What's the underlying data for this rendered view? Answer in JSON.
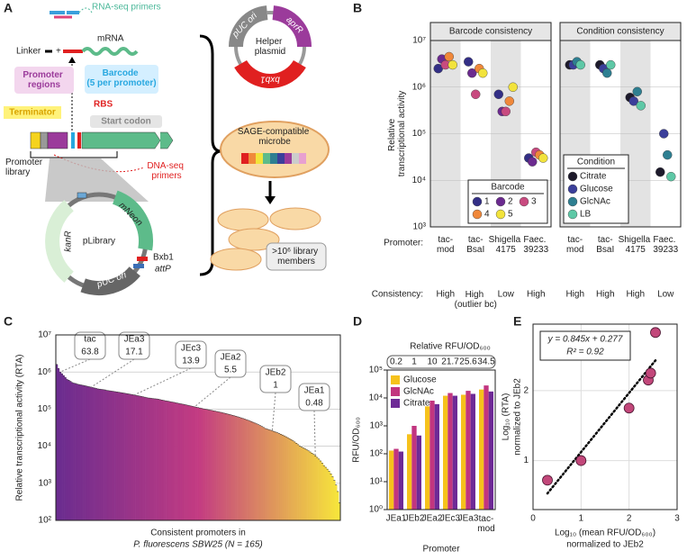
{
  "panel_labels": [
    "A",
    "B",
    "C",
    "D",
    "E"
  ],
  "diagram": {
    "rna_seq_primers": "RNA-seq primers",
    "linker": "Linker",
    "mrna": "mRNA",
    "promoter_regions": "Promoter regions",
    "barcode": "Barcode (5 per promoter)",
    "rbs": "RBS",
    "terminator": "Terminator",
    "start_codon": "Start codon",
    "promoter_library": "Promoter library",
    "dna_seq_primers": "DNA-seq primers",
    "mneon": "mNeon",
    "kanr": "kanR",
    "plibrary": "pLibrary",
    "bxb1": "Bxb1",
    "attp": "attP",
    "library_puc_ori": "pUC ori",
    "helper_puc_ori": "pUC ori",
    "aprr": "aprR",
    "helper_plasmid": "Helper plasmid",
    "helper_bxb1": "bxb1",
    "microbe": "SAGE-compatible microbe",
    "library_members": ">10⁶ library members"
  },
  "chart_data": [
    {
      "type": "strip",
      "title": "Barcode consistency",
      "ylabel": "Relative transcriptional activity",
      "row_labels": [
        "Promoter:",
        "Consistency:"
      ],
      "categories": [
        "tac-mod",
        "tac-BsaI",
        "Shigella 4175",
        "Faec. 39233"
      ],
      "consistency": [
        "High",
        "High (outlier bc)",
        "Low",
        "High"
      ],
      "log_y": true,
      "ylim": [
        1000,
        10000000
      ],
      "yticks": [
        {
          "value": 1000,
          "label": "10³"
        },
        {
          "value": 10000,
          "label": "10⁴"
        },
        {
          "value": 100000,
          "label": "10⁵"
        },
        {
          "value": 1000000,
          "label": "10⁶"
        },
        {
          "value": 10000000,
          "label": "10⁷"
        }
      ],
      "grid": true,
      "legend": "lower right",
      "legend_title": "Barcode",
      "legend_columns": 3,
      "series": [
        {
          "name": "1",
          "color": "#332f86",
          "values": [
            2500000,
            3500000,
            700000,
            30000
          ]
        },
        {
          "name": "2",
          "color": "#6b2a8f",
          "values": [
            4000000,
            2000000,
            300000,
            25000
          ]
        },
        {
          "name": "3",
          "color": "#c84a7f",
          "values": [
            3000000,
            700000,
            300000,
            40000
          ]
        },
        {
          "name": "4",
          "color": "#f0883a",
          "values": [
            4500000,
            2500000,
            500000,
            35000
          ]
        },
        {
          "name": "5",
          "color": "#f2e33c",
          "values": [
            3000000,
            2000000,
            1000000,
            30000
          ]
        }
      ]
    },
    {
      "type": "strip",
      "title": "Condition consistency",
      "categories": [
        "tac-mod",
        "tac-BsaI",
        "Shigella 4175",
        "Faec. 39233"
      ],
      "consistency": [
        "High",
        "High",
        "High",
        "Low"
      ],
      "log_y": true,
      "ylim": [
        1000,
        10000000
      ],
      "yticks": [
        1000,
        10000,
        100000,
        1000000,
        10000000
      ],
      "grid": true,
      "legend": "lower left",
      "legend_title": "Condition",
      "legend_columns": 1,
      "series": [
        {
          "name": "Citrate",
          "color": "#1d1a2b",
          "values": [
            3000000,
            3000000,
            600000,
            15000
          ]
        },
        {
          "name": "Glucose",
          "color": "#3b3f9a",
          "values": [
            3000000,
            2500000,
            500000,
            100000
          ]
        },
        {
          "name": "GlcNAc",
          "color": "#2e7f91",
          "values": [
            3500000,
            2000000,
            800000,
            35000
          ]
        },
        {
          "name": "LB",
          "color": "#5ec8a6",
          "values": [
            3000000,
            3000000,
            400000,
            12000
          ]
        }
      ]
    },
    {
      "type": "gradient_bar",
      "ylabel": "Relative transcriptional activity (RTA)",
      "xlabel_lines": [
        "Consistent promoters in",
        "P. fluorescens SBW25 (N = 165)"
      ],
      "log_y": true,
      "ylim": [
        100,
        10000000
      ],
      "yticks": [
        {
          "value": 100,
          "label": "10²"
        },
        {
          "value": 1000,
          "label": "10³"
        },
        {
          "value": 10000,
          "label": "10⁴"
        },
        {
          "value": 100000,
          "label": "10⁵"
        },
        {
          "value": 1000000,
          "label": "10⁶"
        },
        {
          "value": 10000000,
          "label": "10⁷"
        }
      ],
      "grid": true,
      "colors": [
        "#6a2c8f",
        "#c33b82",
        "#f7e63a"
      ],
      "values": [
        1600000,
        1250000,
        1000000,
        900000,
        800000,
        710000,
        630000,
        600000,
        560000,
        520000,
        500000,
        490000,
        470000,
        460000,
        450000,
        440000,
        430000,
        420000,
        410000,
        400000,
        390000,
        380000,
        370000,
        360000,
        350000,
        345000,
        340000,
        335000,
        330000,
        320000,
        315000,
        310000,
        305000,
        300000,
        295000,
        290000,
        285000,
        280000,
        275000,
        270000,
        265000,
        260000,
        255000,
        250000,
        245000,
        240000,
        235000,
        230000,
        225000,
        220000,
        215000,
        210000,
        205000,
        200000,
        198000,
        195000,
        192000,
        190000,
        188000,
        185000,
        180000,
        176000,
        172000,
        168000,
        165000,
        162000,
        158000,
        155000,
        152000,
        148000,
        145000,
        142000,
        139000,
        136000,
        133000,
        130000,
        127000,
        124000,
        121000,
        118000,
        115000,
        112000,
        110000,
        107000,
        105000,
        102000,
        100000,
        98000,
        96000,
        94000,
        92000,
        90000,
        88000,
        86000,
        84000,
        82000,
        80000,
        78000,
        76000,
        74000,
        72000,
        70000,
        68000,
        66000,
        64000,
        62000,
        60000,
        58000,
        56000,
        54000,
        52000,
        50000,
        48000,
        46000,
        44000,
        42000,
        40000,
        38000,
        36000,
        34000,
        32000,
        30000,
        29000,
        28000,
        27000,
        26000,
        25000,
        24000,
        23000,
        22000,
        21000,
        20000,
        19000,
        18000,
        17000,
        16000,
        15000,
        14000,
        13000,
        12000,
        11000,
        10000,
        9500,
        9000,
        8500,
        8000,
        7500,
        7000,
        6500,
        6000,
        5500,
        5000,
        4500,
        4000,
        3500,
        3000,
        2700,
        2400,
        2100,
        1800,
        1500,
        1200,
        900,
        600,
        300
      ],
      "annotations": [
        {
          "label": "tac",
          "value": 63.8
        },
        {
          "label": "JEa3",
          "value": 17.1
        },
        {
          "label": "JEc3",
          "value": 13.9
        },
        {
          "label": "JEa2",
          "value": 5.5
        },
        {
          "label": "JEb2",
          "value": 1
        },
        {
          "label": "JEa1",
          "value": 0.48
        }
      ]
    },
    {
      "type": "grouped_bar",
      "ylabel": "RFU/OD₆₀₀",
      "xlabel": "Promoter",
      "top_axis_title": "Relative RFU/OD₆₀₀",
      "top_axis_values": [
        0.2,
        1,
        10,
        21.7,
        25.6,
        34.5
      ],
      "categories": [
        "JEa1",
        "JEb2",
        "JEa2",
        "JEc3",
        "JEa3",
        "tac-mod"
      ],
      "log_y": true,
      "ylim": [
        1,
        100000
      ],
      "yticks": [
        {
          "value": 1,
          "label": "10⁰"
        },
        {
          "value": 10,
          "label": "10¹"
        },
        {
          "value": 100,
          "label": "10²"
        },
        {
          "value": 1000,
          "label": "10³"
        },
        {
          "value": 10000,
          "label": "10⁴"
        },
        {
          "value": 100000,
          "label": "10⁵"
        }
      ],
      "legend": "upper left",
      "series": [
        {
          "name": "Glucose",
          "color": "#f6c21c",
          "values": [
            130,
            500,
            5000,
            12000,
            13000,
            20000
          ]
        },
        {
          "name": "GlcNAc",
          "color": "#c2357f",
          "values": [
            150,
            1000,
            8000,
            15000,
            18000,
            28000
          ]
        },
        {
          "name": "Citrate",
          "color": "#6e2a96",
          "values": [
            120,
            450,
            6000,
            12000,
            14000,
            17000
          ]
        }
      ]
    },
    {
      "type": "scatter",
      "xlabel_lines": [
        "Log₁₀ (mean RFU/OD₆₀₀)",
        "normalized to JEb2"
      ],
      "ylabel_lines": [
        "Log₁₀ (RTA)",
        "normalized to JEb2"
      ],
      "x": [
        0.3,
        1.0,
        2.0,
        2.4,
        2.45,
        2.55
      ],
      "values": [
        0.72,
        1.0,
        1.75,
        2.15,
        2.25,
        2.83
      ],
      "color": "#c2477a",
      "xlim": [
        0,
        3
      ],
      "ylim": [
        0.3,
        2.95
      ],
      "xticks": [
        0,
        1,
        2,
        3
      ],
      "yticks": [
        1,
        2
      ],
      "grid": true,
      "fit": {
        "slope": 0.845,
        "intercept": 0.277,
        "equation": "y = 0.845x + 0.277",
        "r2": "R² = 0.92"
      }
    }
  ]
}
